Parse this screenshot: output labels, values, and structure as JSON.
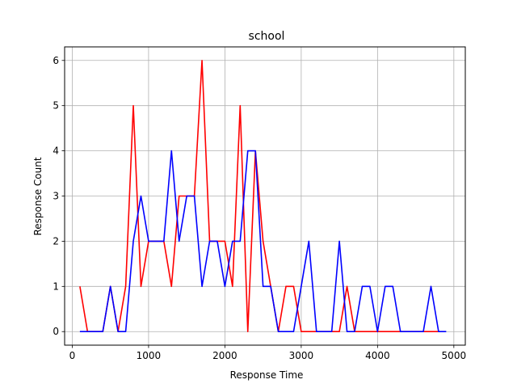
{
  "chart_data": {
    "type": "line",
    "title": "school",
    "xlabel": "Response Time",
    "ylabel": "Response Count",
    "xlim": [
      -100,
      5150
    ],
    "ylim": [
      -0.3,
      6.3
    ],
    "xticks": [
      0,
      1000,
      2000,
      3000,
      4000,
      5000
    ],
    "yticks": [
      0,
      1,
      2,
      3,
      4,
      5,
      6
    ],
    "grid": true,
    "x": [
      100,
      200,
      300,
      400,
      500,
      600,
      700,
      800,
      900,
      1000,
      1100,
      1200,
      1300,
      1400,
      1500,
      1600,
      1700,
      1800,
      1900,
      2000,
      2100,
      2200,
      2300,
      2400,
      2500,
      2600,
      2700,
      2800,
      2900,
      3000,
      3100,
      3200,
      3300,
      3400,
      3500,
      3600,
      3700,
      3800,
      3900,
      4000,
      4100,
      4200,
      4300,
      4400,
      4500,
      4600,
      4700,
      4800,
      4900
    ],
    "series": [
      {
        "color": "#ff0000",
        "x": [
          100,
          200,
          300,
          400,
          500,
          600,
          700,
          800,
          900,
          1000,
          1100,
          1200,
          1300,
          1400,
          1500,
          1600,
          1700,
          1800,
          1900,
          2000,
          2100,
          2200,
          2300,
          2400,
          2500,
          2600,
          2700,
          2800,
          2900,
          3000,
          3100,
          3200,
          3300,
          3400,
          3500,
          3600,
          3700,
          3800,
          3900,
          4000,
          4100,
          4200,
          4300,
          4400,
          4500,
          4600,
          4700,
          4800
        ],
        "values": [
          1,
          0,
          0,
          0,
          1,
          0,
          1,
          5,
          1,
          2,
          2,
          2,
          1,
          3,
          3,
          3,
          6,
          2,
          2,
          2,
          1,
          5,
          0,
          4,
          2,
          1,
          0,
          1,
          1,
          0,
          0,
          0,
          0,
          0,
          0,
          1,
          0,
          0,
          0,
          0,
          0,
          0,
          0,
          0,
          0,
          0,
          0,
          0
        ]
      },
      {
        "color": "#0000ff",
        "x": [
          100,
          200,
          300,
          400,
          500,
          600,
          700,
          800,
          900,
          1000,
          1100,
          1200,
          1300,
          1400,
          1500,
          1600,
          1700,
          1800,
          1900,
          2000,
          2100,
          2200,
          2300,
          2400,
          2500,
          2600,
          2700,
          2800,
          2900,
          3000,
          3100,
          3200,
          3300,
          3400,
          3500,
          3600,
          3700,
          3800,
          3900,
          4000,
          4100,
          4200,
          4300,
          4400,
          4500,
          4600,
          4700,
          4800,
          4900
        ],
        "values": [
          0,
          0,
          0,
          0,
          1,
          0,
          0,
          2,
          3,
          2,
          2,
          2,
          4,
          2,
          3,
          3,
          1,
          2,
          2,
          1,
          2,
          2,
          4,
          4,
          1,
          1,
          0,
          0,
          0,
          1,
          2,
          0,
          0,
          0,
          2,
          0,
          0,
          1,
          1,
          0,
          1,
          1,
          0,
          0,
          0,
          0,
          1,
          0,
          0
        ]
      }
    ]
  }
}
